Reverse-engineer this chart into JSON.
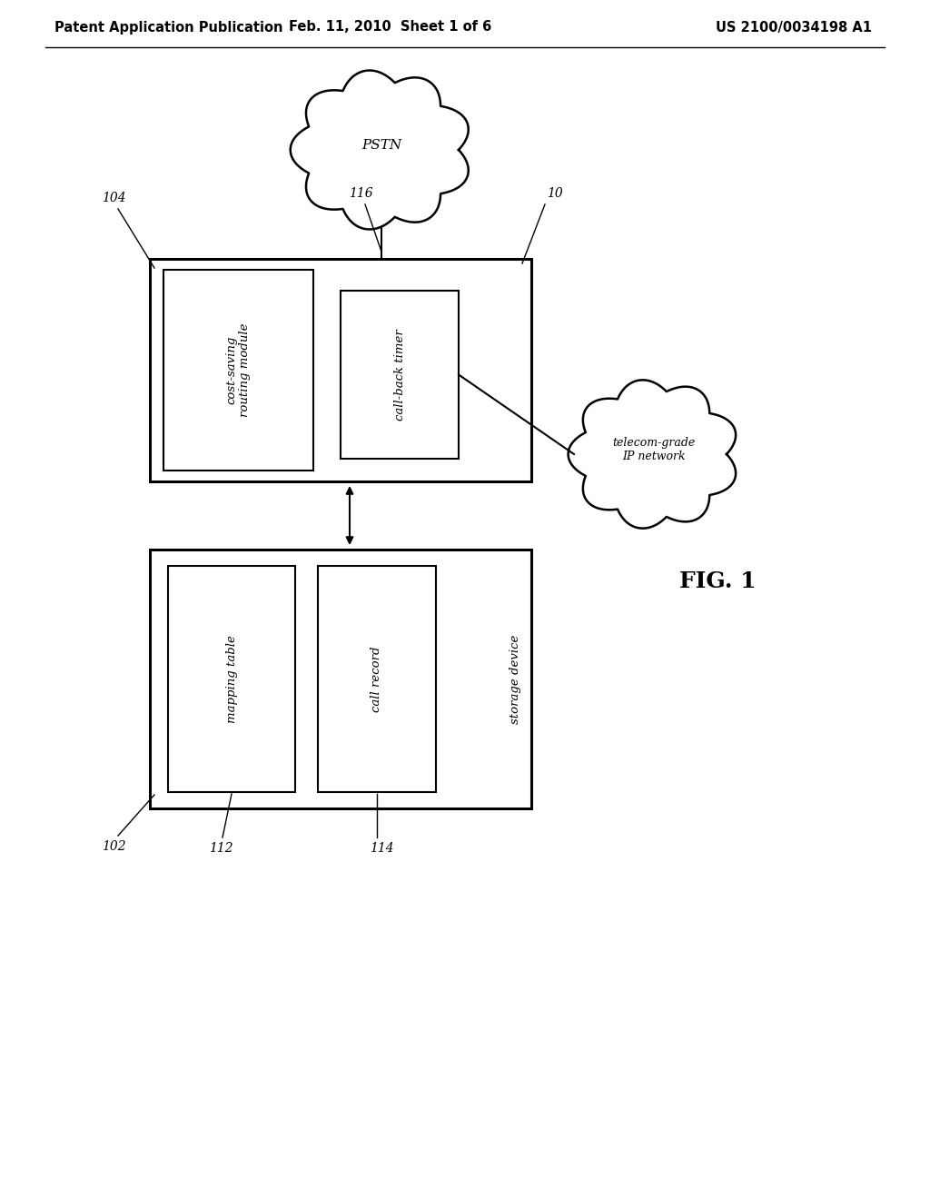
{
  "background_color": "#ffffff",
  "header_left": "Patent Application Publication",
  "header_mid": "Feb. 11, 2010  Sheet 1 of 6",
  "header_right": "US 2100/0034198 A1",
  "fig_label": "FIG. 1",
  "pstn_label": "PSTN",
  "ip_network_label": "telecom-grade\nIP network",
  "box10_label": "10",
  "box104_label": "104",
  "box116_label": "116",
  "box102_label": "102",
  "box112_label": "112",
  "box114_label": "114",
  "inner_top_left_label": "cost-saving\nrouting module",
  "inner_top_right_label": "call-back timer",
  "inner_bottom_left_label": "mapping table",
  "inner_bottom_right_label": "call record",
  "storage_device_label": "storage device",
  "line_color": "#000000",
  "text_color": "#000000",
  "font_size_header": 10.5,
  "font_size_label": 10,
  "font_size_inner": 9.5,
  "font_size_fig": 18
}
